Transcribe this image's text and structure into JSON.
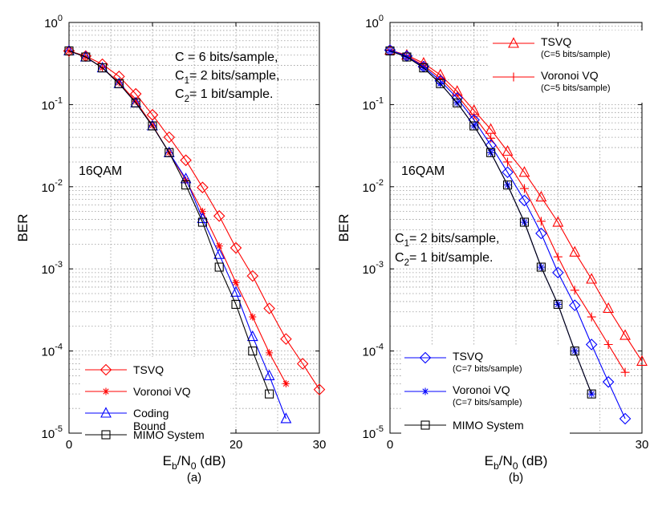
{
  "chart_data": [
    {
      "type": "line",
      "panel_label": "(a)",
      "xlabel": "E_b/N_0 (dB)",
      "ylabel": "BER",
      "xlim": [
        0,
        30
      ],
      "ylim": [
        1e-05,
        1
      ],
      "yscale": "log",
      "grid": true,
      "x_ticks": [
        0,
        10,
        20,
        30
      ],
      "y_ticks": [
        1,
        0.1,
        0.01,
        0.001,
        0.0001,
        1e-05
      ],
      "annotations": {
        "lines": [
          "C = 6 bits/sample,",
          "C_1= 2 bits/sample,",
          "C_2= 1 bit/sample."
        ],
        "modulation": "16QAM"
      },
      "legend_position": "bottom-left",
      "series": [
        {
          "name": "TSVQ",
          "color": "#ff0000",
          "marker": "diamond",
          "x": [
            0,
            2,
            4,
            6,
            8,
            10,
            12,
            14,
            16,
            18,
            20,
            22,
            24,
            26,
            28,
            30
          ],
          "y": [
            0.45,
            0.39,
            0.31,
            0.22,
            0.135,
            0.075,
            0.04,
            0.021,
            0.0098,
            0.0044,
            0.0018,
            0.00082,
            0.00033,
            0.00014,
            7e-05,
            3.4e-05
          ]
        },
        {
          "name": "Voronoi VQ",
          "color": "#ff0000",
          "marker": "star",
          "x": [
            0,
            2,
            4,
            6,
            8,
            10,
            12,
            14,
            16,
            18,
            20,
            22,
            24,
            26
          ],
          "y": [
            0.45,
            0.38,
            0.28,
            0.185,
            0.11,
            0.056,
            0.026,
            0.012,
            0.005,
            0.0019,
            0.00068,
            0.00026,
            9.5e-05,
            4e-05
          ]
        },
        {
          "name": "Coding Bound",
          "name_lines": [
            "Coding",
            "Bound"
          ],
          "color": "#0000ff",
          "marker": "triangle",
          "x": [
            0,
            2,
            4,
            6,
            8,
            10,
            12,
            14,
            16,
            18,
            20,
            22,
            24,
            26
          ],
          "y": [
            0.45,
            0.38,
            0.28,
            0.18,
            0.105,
            0.055,
            0.026,
            0.0125,
            0.0041,
            0.0015,
            0.00052,
            0.00015,
            5e-05,
            1.5e-05
          ]
        },
        {
          "name": "MIMO System",
          "color": "#000000",
          "marker": "square",
          "x": [
            0,
            2,
            4,
            6,
            8,
            10,
            12,
            14,
            16,
            18,
            20,
            22,
            24
          ],
          "y": [
            0.45,
            0.38,
            0.28,
            0.18,
            0.105,
            0.055,
            0.026,
            0.0105,
            0.0037,
            0.00105,
            0.00037,
            0.0001,
            3e-05
          ]
        }
      ]
    },
    {
      "type": "line",
      "panel_label": "(b)",
      "xlabel": "E_b/N_0 (dB)",
      "ylabel": "BER",
      "xlim": [
        0,
        30
      ],
      "ylim": [
        1e-05,
        1
      ],
      "yscale": "log",
      "grid": true,
      "x_ticks": [
        0,
        10,
        20,
        30
      ],
      "y_ticks": [
        1,
        0.1,
        0.01,
        0.001,
        0.0001,
        1e-05
      ],
      "annotations": {
        "lines": [
          "C_1= 2 bits/sample,",
          "C_2= 1 bit/sample."
        ],
        "modulation": "16QAM"
      },
      "legend_position": "top-right and bottom-left",
      "series": [
        {
          "name": "TSVQ",
          "sub": "(C=5 bits/sample)",
          "color": "#ff0000",
          "marker": "triangle",
          "x": [
            0,
            2,
            4,
            6,
            8,
            10,
            12,
            14,
            16,
            18,
            20,
            22,
            24,
            26,
            28,
            30
          ],
          "y": [
            0.46,
            0.4,
            0.32,
            0.23,
            0.145,
            0.085,
            0.05,
            0.027,
            0.015,
            0.0075,
            0.0037,
            0.0016,
            0.00075,
            0.00033,
            0.000155,
            7.5e-05
          ]
        },
        {
          "name": "Voronoi VQ",
          "sub": "(C=5 bits/sample)",
          "color": "#ff0000",
          "marker": "plus",
          "x": [
            0,
            2,
            4,
            6,
            8,
            10,
            12,
            14,
            16,
            18,
            20,
            22,
            24,
            26,
            28
          ],
          "y": [
            0.46,
            0.39,
            0.3,
            0.21,
            0.13,
            0.072,
            0.039,
            0.02,
            0.0095,
            0.0038,
            0.0014,
            0.00055,
            0.00026,
            0.00012,
            5.5e-05
          ]
        },
        {
          "name": "TSVQ",
          "sub": "(C=7 bits/sample)",
          "color": "#0000ff",
          "marker": "diamond",
          "x": [
            0,
            2,
            4,
            6,
            8,
            10,
            12,
            14,
            16,
            18,
            20,
            22,
            24,
            26,
            28
          ],
          "y": [
            0.46,
            0.39,
            0.29,
            0.195,
            0.12,
            0.065,
            0.032,
            0.015,
            0.0068,
            0.0027,
            0.0009,
            0.00036,
            0.00012,
            4.2e-05,
            1.5e-05
          ]
        },
        {
          "name": "Voronoi VQ",
          "sub": "(C=7 bits/sample)",
          "color": "#0000ff",
          "marker": "star",
          "x": [
            0,
            2,
            4,
            6,
            8,
            10,
            12,
            14,
            16,
            18,
            20,
            22,
            24
          ],
          "y": [
            0.45,
            0.38,
            0.28,
            0.18,
            0.105,
            0.055,
            0.026,
            0.0105,
            0.0037,
            0.00105,
            0.00037,
            0.0001,
            3e-05
          ]
        },
        {
          "name": "MIMO System",
          "color": "#000000",
          "marker": "square",
          "x": [
            0,
            2,
            4,
            6,
            8,
            10,
            12,
            14,
            16,
            18,
            20,
            22,
            24
          ],
          "y": [
            0.45,
            0.38,
            0.28,
            0.18,
            0.105,
            0.055,
            0.026,
            0.0105,
            0.0037,
            0.00105,
            0.00037,
            0.0001,
            3e-05
          ]
        }
      ]
    }
  ]
}
